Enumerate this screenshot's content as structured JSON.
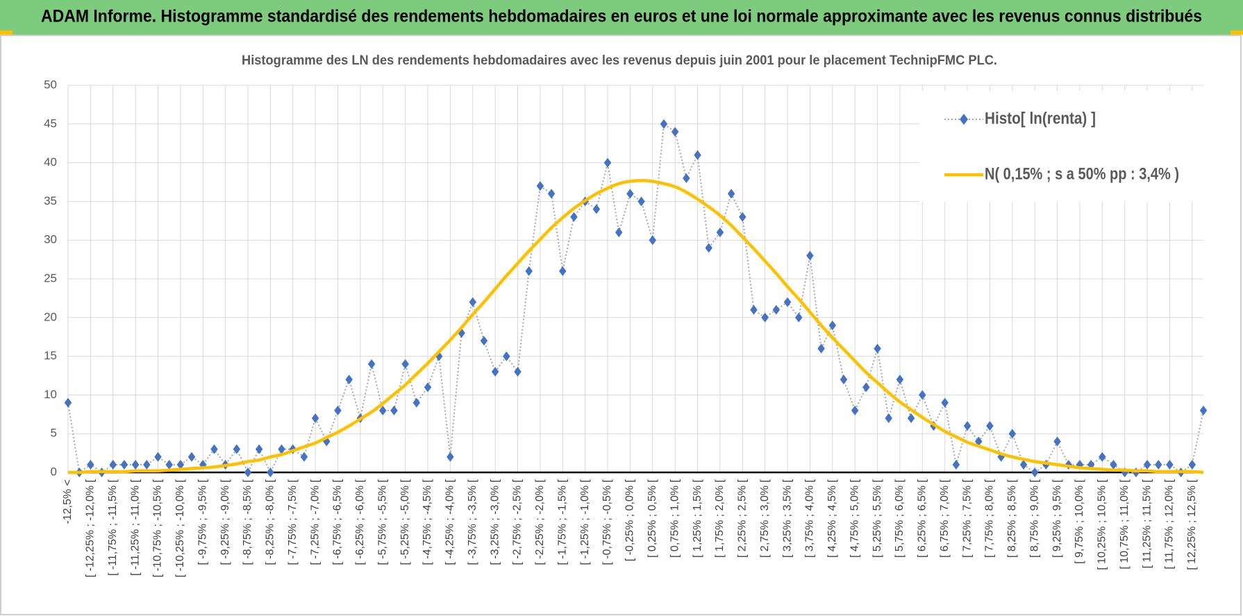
{
  "header": {
    "title": "ADAM Informe. Histogramme standardisé des rendements hebdomadaires en euros et une loi normale approximante avec les revenus connus distribués"
  },
  "chart_data": {
    "type": "line",
    "title": "Histogramme  des LN des rendements hebdomadaires avec les revenus depuis juin 2001 pour le placement TechnipFMC PLC.",
    "categories": [
      "-12,5% <",
      null,
      "[ -12,25% ; -12,0% [",
      null,
      "[ -11,75% ; -11,5% [",
      null,
      "[ -11,25% ; -11,0% [",
      null,
      "[ -10,75% ; -10,5% [",
      null,
      "[ -10,25% ; -10,0% [",
      null,
      "[ -9,75% ; -9,5% [",
      null,
      "[ -9,25% ; -9,0% [",
      null,
      "[ -8,75% ; -8,5% [",
      null,
      "[ -8,25% ; -8,0% [",
      null,
      "[ -7,75% ; -7,5% [",
      null,
      "[ -7,25% ; -7,0% [",
      null,
      "[ -6,75% ; -6,5% [",
      null,
      "[ -6,25% ; -6,0% [",
      null,
      "[ -5,75% ; -5,5% [",
      null,
      "[ -5,25% ; -5,0% [",
      null,
      "[ -4,75% ; -4,5% [",
      null,
      "[ -4,25% ; -4,0% [",
      null,
      "[ -3,75% ; -3,5% [",
      null,
      "[ -3,25% ; -3,0% [",
      null,
      "[ -2,75% ; -2,5% [",
      null,
      "[ -2,25% ; -2,0% [",
      null,
      "[ -1,75% ; -1,5% [",
      null,
      "[ -1,25% ; -1,0% [",
      null,
      "[ -0,75% ; -0,5% [",
      null,
      "[ -0,25% ; 0,0% [",
      null,
      "[ 0,25% ; 0,5% [",
      null,
      "[ 0,75% ; 1,0% [",
      null,
      "[ 1,25% ; 1,5% [",
      null,
      "[ 1,75% ; 2,0% [",
      null,
      "[ 2,25% ; 2,5% [",
      null,
      "[ 2,75% ; 3,0% [",
      null,
      "[ 3,25% ; 3,5% [",
      null,
      "[ 3,75% ; 4,0% [",
      null,
      "[ 4,25% ; 4,5% [",
      null,
      "[ 4,75% ; 5,0% [",
      null,
      "[ 5,25% ; 5,5% [",
      null,
      "[ 5,75% ; 6,0% [",
      null,
      "[ 6,25% ; 6,5% [",
      null,
      "[ 6,75% ; 7,0% [",
      null,
      "[ 7,25% ; 7,5% [",
      null,
      "[ 7,75% ; 8,0% [",
      null,
      "[ 8,25% ; 8,5% [",
      null,
      "[ 8,75% ; 9,0% [",
      null,
      "[ 9,25% ; 9,5% [",
      null,
      "[ 9,75% ; 10,0% [",
      null,
      "[ 10,25% ; 10,5% [",
      null,
      "[ 10,75% ; 11,0% [",
      null,
      "[ 11,25% ; 11,5% [",
      null,
      "[ 11,75% ; 12,0% [",
      null,
      "[ 12,25% ; 12,5% [",
      null
    ],
    "series": [
      {
        "name": "Histo[ ln(renta) ]",
        "color": "#4472c4",
        "line_color": "#a6a6a6",
        "values": [
          9,
          0,
          1,
          0,
          1,
          1,
          1,
          1,
          2,
          1,
          1,
          2,
          1,
          3,
          1,
          3,
          0,
          3,
          0,
          3,
          3,
          2,
          7,
          4,
          8,
          12,
          7,
          14,
          8,
          8,
          14,
          9,
          11,
          15,
          2,
          18,
          22,
          17,
          13,
          15,
          13,
          26,
          37,
          36,
          26,
          33,
          35,
          34,
          40,
          31,
          36,
          35,
          30,
          45,
          44,
          38,
          41,
          29,
          31,
          36,
          33,
          21,
          20,
          21,
          22,
          20,
          28,
          16,
          19,
          12,
          8,
          11,
          16,
          7,
          12,
          7,
          10,
          6,
          9,
          1,
          6,
          4,
          6,
          2,
          5,
          1,
          0,
          1,
          4,
          1,
          1,
          1,
          2,
          1,
          0,
          0,
          1,
          1,
          1,
          0,
          1,
          8
        ]
      },
      {
        "name": "N( 0,15% ; s a 50% pp : 3,4% )",
        "color": "#ffc000",
        "smooth": true,
        "values": [
          0.0,
          0.0,
          0.1,
          0.1,
          0.1,
          0.1,
          0.2,
          0.2,
          0.2,
          0.3,
          0.4,
          0.5,
          0.6,
          0.7,
          0.9,
          1.1,
          1.4,
          1.6,
          2.0,
          2.3,
          2.8,
          3.3,
          3.8,
          4.5,
          5.2,
          6.0,
          6.9,
          7.8,
          8.9,
          10.1,
          11.3,
          12.7,
          14.1,
          15.6,
          17.1,
          18.7,
          20.4,
          22.0,
          23.7,
          25.4,
          27.0,
          28.6,
          30.1,
          31.6,
          32.9,
          34.1,
          35.1,
          36.0,
          36.7,
          37.3,
          37.6,
          37.7,
          37.6,
          37.3,
          36.9,
          36.2,
          35.3,
          34.3,
          33.2,
          31.9,
          30.4,
          28.9,
          27.3,
          25.7,
          24.0,
          22.4,
          20.7,
          19.0,
          17.4,
          15.9,
          14.4,
          12.9,
          11.6,
          10.3,
          9.1,
          8.1,
          7.1,
          6.2,
          5.3,
          4.6,
          3.9,
          3.4,
          2.9,
          2.4,
          2.0,
          1.7,
          1.4,
          1.2,
          1.0,
          0.8,
          0.6,
          0.5,
          0.4,
          0.3,
          0.3,
          0.2,
          0.2,
          0.1,
          0.1,
          0.1,
          0.1,
          0.0
        ]
      }
    ],
    "ylim": [
      0,
      50
    ],
    "yticks": [
      0,
      5,
      10,
      15,
      20,
      25,
      30,
      35,
      40,
      45,
      50
    ],
    "grid": true,
    "legend": "top-right"
  }
}
